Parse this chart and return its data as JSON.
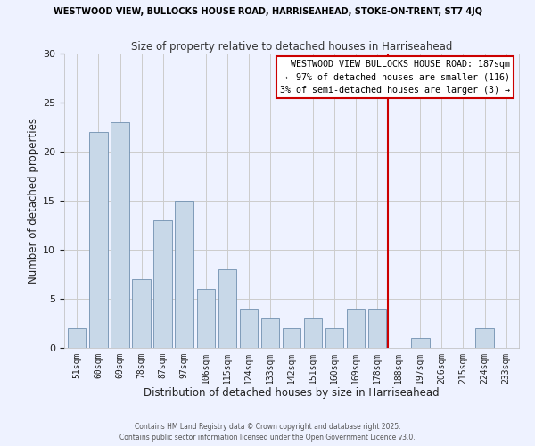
{
  "title_top": "WESTWOOD VIEW, BULLOCKS HOUSE ROAD, HARRISEAHEAD, STOKE-ON-TRENT, ST7 4JQ",
  "title_sub": "Size of property relative to detached houses in Harriseahead",
  "xlabel": "Distribution of detached houses by size in Harriseahead",
  "ylabel": "Number of detached properties",
  "bar_labels": [
    "51sqm",
    "60sqm",
    "69sqm",
    "78sqm",
    "87sqm",
    "97sqm",
    "106sqm",
    "115sqm",
    "124sqm",
    "133sqm",
    "142sqm",
    "151sqm",
    "160sqm",
    "169sqm",
    "178sqm",
    "188sqm",
    "197sqm",
    "206sqm",
    "215sqm",
    "224sqm",
    "233sqm"
  ],
  "bar_values": [
    2,
    22,
    23,
    7,
    13,
    15,
    6,
    8,
    4,
    3,
    2,
    3,
    2,
    4,
    4,
    0,
    1,
    0,
    0,
    2,
    0
  ],
  "bar_color": "#c8d8e8",
  "bar_edge_color": "#7090b0",
  "vline_color": "#cc0000",
  "ylim": [
    0,
    30
  ],
  "annotation_title": "WESTWOOD VIEW BULLOCKS HOUSE ROAD: 187sqm",
  "annotation_line1": "← 97% of detached houses are smaller (116)",
  "annotation_line2": "3% of semi-detached houses are larger (3) →",
  "annotation_box_color": "#ffffff",
  "annotation_box_edge": "#cc0000",
  "footer1": "Contains HM Land Registry data © Crown copyright and database right 2025.",
  "footer2": "Contains public sector information licensed under the Open Government Licence v3.0.",
  "grid_color": "#cccccc",
  "background_color": "#eef2ff"
}
